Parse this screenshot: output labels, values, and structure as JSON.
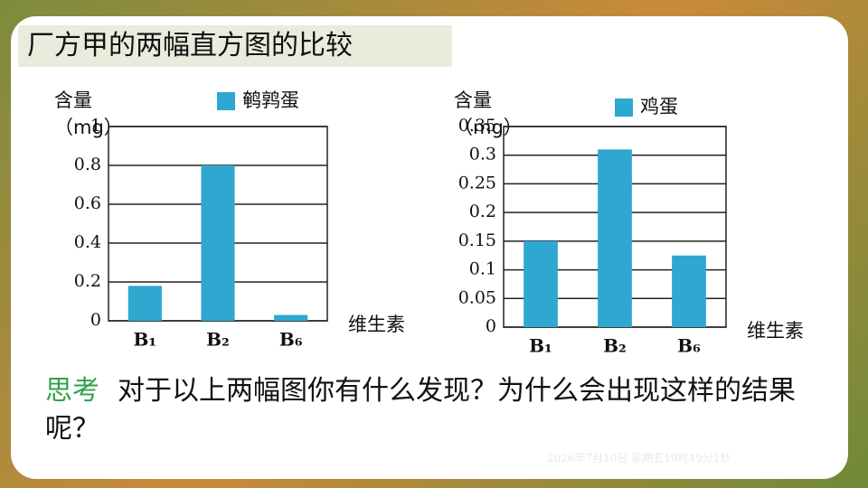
{
  "slide": {
    "title": "厂方甲的两幅直方图的比较",
    "prompt_label": "思考",
    "prompt": "对于以上两幅图你有什么发现？为什么会出现这样的结果呢？",
    "timestamp": "2026年7月10日 星期五19时49分1秒"
  },
  "chart_data": [
    {
      "type": "bar",
      "y_label": "含量（mg）",
      "x_label": "维生素",
      "categories": [
        "B₁",
        "B₂",
        "B₆"
      ],
      "series": [
        {
          "name": "鹌鹑蛋",
          "color": "#2ea7d1",
          "values": [
            0.18,
            0.8,
            0.03
          ]
        }
      ],
      "ylim": [
        0,
        1
      ],
      "yticks": [
        0,
        0.2,
        0.4,
        0.6,
        0.8,
        1
      ],
      "grid": true
    },
    {
      "type": "bar",
      "y_label": "含量（mg）",
      "x_label": "维生素",
      "categories": [
        "B₁",
        "B₂",
        "B₆"
      ],
      "series": [
        {
          "name": "鸡蛋",
          "color": "#2ea7d1",
          "values": [
            0.15,
            0.31,
            0.125
          ]
        }
      ],
      "ylim": [
        0,
        0.35
      ],
      "yticks": [
        0,
        0.05,
        0.1,
        0.15,
        0.2,
        0.25,
        0.3,
        0.35
      ],
      "grid": true
    }
  ]
}
